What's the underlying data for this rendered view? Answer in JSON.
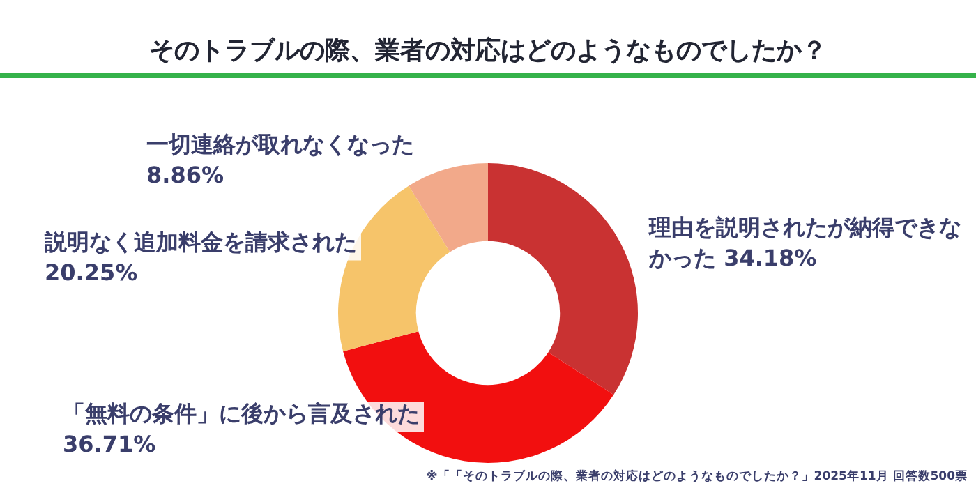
{
  "chart_data": {
    "type": "donut",
    "title": "そのトラブルの際、業者の対応はどのようなものでしたか？",
    "categories": [
      "理由を説明されたが納得できなかった",
      "「無料の条件」に後から言及された",
      "説明なく追加料金を請求された",
      "一切連絡が取れなくなった"
    ],
    "values": [
      34.18,
      36.71,
      20.25,
      8.86
    ],
    "value_labels": [
      "34.18%",
      "36.71%",
      "20.25%",
      "8.86%"
    ],
    "colors": [
      "#c93232",
      "#f20f0f",
      "#f6c46a",
      "#f2a98a"
    ],
    "legend": false,
    "annotations": [
      "※「「そのトラブルの際、業者の対応はどのようなものでしたか？」2025年11月 回答数500票"
    ]
  }
}
